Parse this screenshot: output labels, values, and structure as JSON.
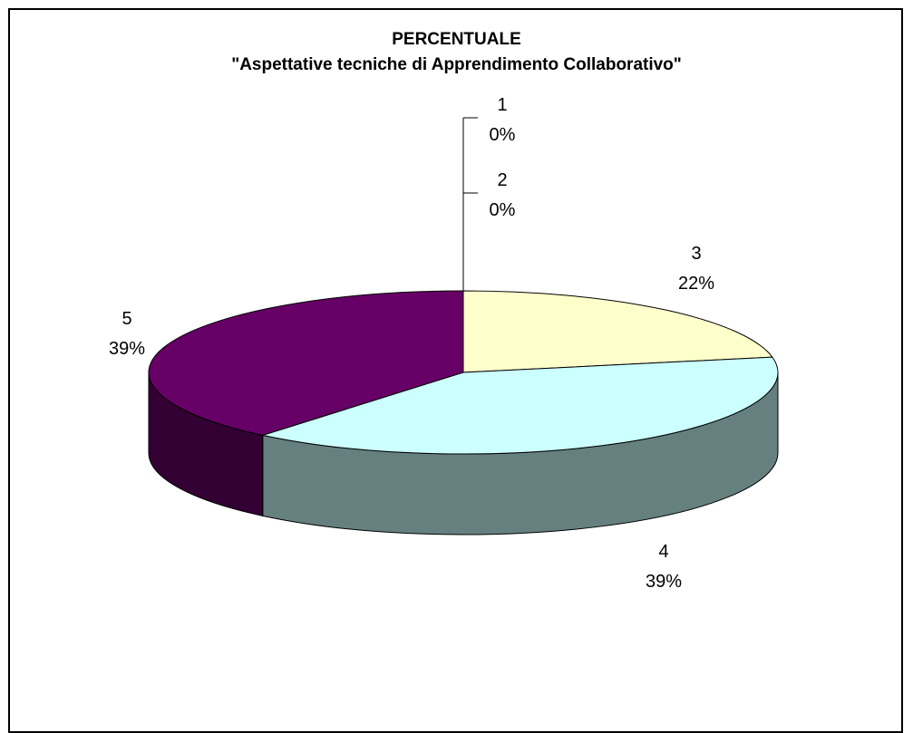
{
  "chart_data": {
    "type": "pie",
    "title": "PERCENTUALE",
    "subtitle": "\"Aspettative tecniche di Apprendimento Collaborativo\"",
    "categories": [
      "1",
      "2",
      "3",
      "4",
      "5"
    ],
    "values": [
      0,
      0,
      22,
      39,
      39
    ],
    "value_labels": [
      "0%",
      "0%",
      "22%",
      "39%",
      "39%"
    ],
    "colors": [
      "#9999ff",
      "#993366",
      "#ffffcc",
      "#ccffff",
      "#660066"
    ],
    "side_colors": [
      "#5c5c99",
      "#5c1f3d",
      "#99997a",
      "#668080",
      "#330033"
    ],
    "style": "3d-pie"
  }
}
